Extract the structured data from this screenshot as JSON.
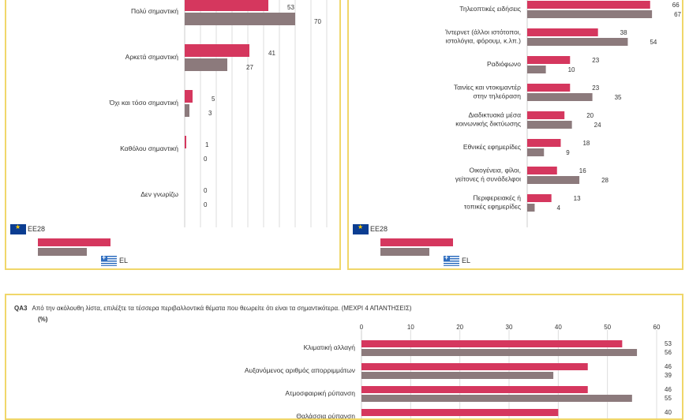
{
  "colors": {
    "eu28": "#d5375e",
    "el": "#8c7a7c",
    "grid": "#dddddd",
    "border": "#f0d76a",
    "text": "#333333"
  },
  "legend": {
    "eu_label": "EE28",
    "el_label": "EL"
  },
  "qa3": {
    "code": "QA3",
    "question": "Από την ακόλουθη λίστα, επιλέξτε τα τέσσερα περιβαλλοντικά θέματα που θεωρείτε ότι είναι τα σημαντικότερα. (ΜΕΧΡΙ 4 ΑΠΑΝΤΗΣΕΙΣ)",
    "unit": "(%)"
  },
  "chart_data": [
    {
      "type": "bar",
      "orientation": "horizontal",
      "categories": [
        "Πολύ σημαντική",
        "Αρκετά σημαντική",
        "Όχι και τόσο σημαντική",
        "Καθόλου σημαντική",
        "Δεν γνωρίζω"
      ],
      "series": [
        {
          "name": "EE28",
          "values": [
            53,
            41,
            5,
            1,
            0
          ]
        },
        {
          "name": "EL",
          "values": [
            70,
            27,
            3,
            0,
            0
          ]
        }
      ],
      "xlim": [
        0,
        100
      ],
      "grid": true,
      "legend_position": "bottom-left"
    },
    {
      "type": "bar",
      "orientation": "horizontal",
      "categories": [
        "Τηλεοπτικές ειδήσεις",
        "Ίντερνετ (άλλοι ιστότοποι, ιστολόγια, φόρουμ, κ.λπ.)",
        "Ραδιόφωνο",
        "Ταινίες και ντοκιμαντέρ στην τηλεόραση",
        "Διαδικτυακά μέσα κοινωνικής δικτύωσης",
        "Εθνικές εφημερίδες",
        "Οικογένεια, φίλοι, γείτονες ή συνάδελφοι",
        "Περιφερειακές ή τοπικές εφημερίδες"
      ],
      "series": [
        {
          "name": "EE28",
          "values": [
            66,
            38,
            23,
            23,
            20,
            18,
            16,
            13
          ]
        },
        {
          "name": "EL",
          "values": [
            67,
            54,
            10,
            35,
            24,
            9,
            28,
            4
          ]
        }
      ],
      "xlim": [
        0,
        100
      ],
      "grid": false,
      "legend_position": "bottom-left"
    },
    {
      "type": "bar",
      "orientation": "horizontal",
      "title": "QA3",
      "categories": [
        "Κλιματική αλλαγή",
        "Αυξανόμενος αριθμός απορριμμάτων",
        "Ατμοσφαιρική ρύπανση",
        "Θαλάσσια ρύπανση"
      ],
      "series": [
        {
          "name": "EE28",
          "values": [
            53,
            46,
            46,
            40
          ]
        },
        {
          "name": "EL",
          "values": [
            56,
            39,
            55,
            null
          ]
        }
      ],
      "xlim": [
        0,
        60
      ],
      "xticks": [
        0,
        10,
        20,
        30,
        40,
        50,
        60
      ],
      "grid": true,
      "legend_position": "none"
    }
  ]
}
